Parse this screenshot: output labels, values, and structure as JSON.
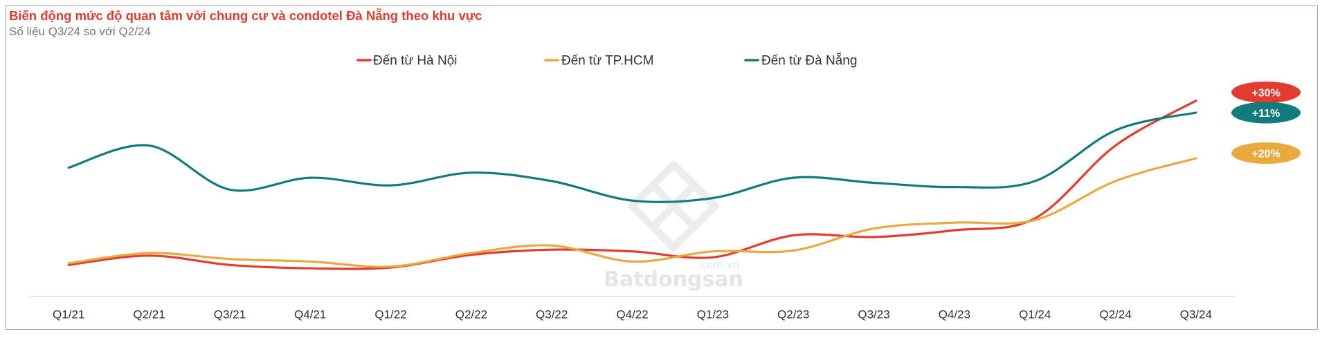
{
  "chart_data": {
    "type": "line",
    "curve": "smooth",
    "title": "Biến động mức độ quan tâm với chung cư và condotel Đà Nẵng theo khu vực",
    "subtitle": "Số liệu Q3/24 so với Q2/24",
    "categories": [
      "Q1/21",
      "Q2/21",
      "Q3/21",
      "Q4/21",
      "Q1/22",
      "Q2/22",
      "Q3/22",
      "Q4/22",
      "Q1/23",
      "Q2/23",
      "Q3/23",
      "Q4/23",
      "Q1/24",
      "Q2/24",
      "Q3/24"
    ],
    "series": [
      {
        "name": "Đến từ Hà Nội",
        "color": "#E33B2E",
        "change_label": "+30%",
        "values": [
          37,
          48,
          37,
          33,
          34,
          49,
          55,
          53,
          46,
          72,
          70,
          78,
          92,
          178,
          231
        ]
      },
      {
        "name": "Đến từ TP.HCM",
        "color": "#E8A93F",
        "change_label": "+20%",
        "values": [
          39,
          51,
          44,
          41,
          35,
          51,
          60,
          41,
          53,
          54,
          80,
          87,
          90,
          136,
          163
        ]
      },
      {
        "name": "Đến từ Đà Nẵng",
        "color": "#127B7C",
        "change_label": "+11%",
        "values": [
          152,
          178,
          126,
          140,
          131,
          146,
          136,
          113,
          116,
          140,
          134,
          129,
          136,
          196,
          217
        ]
      }
    ],
    "ylim": [
      0,
      280
    ],
    "y_axis_visible": false,
    "grid": false,
    "legend_position": "top-center"
  },
  "colors": {
    "title": "#E33B2E",
    "subtitle": "#777777"
  },
  "watermark": {
    "icon": "batdongsan-logo-icon",
    "brand": "Batdongsan",
    "domain": ".com.vn"
  }
}
